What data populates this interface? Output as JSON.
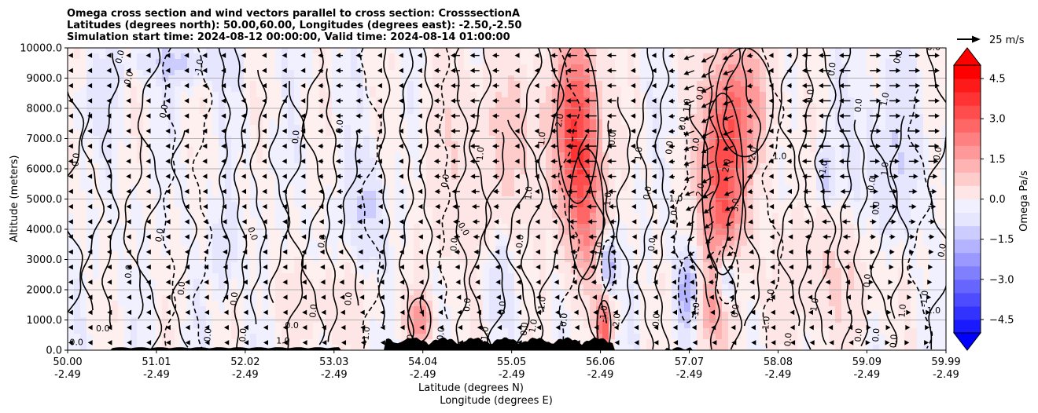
{
  "chart_data": {
    "type": "heatmap",
    "title_lines": [
      "Omega cross section and wind vectors parallel to cross section: CrosssectionA",
      "Latitudes (degrees north): 50.00,60.00, Longitudes (degrees east): -2.50,-2.50",
      "Simulation start time: 2024-08-12 00:00:00, Valid time: 2024-08-14 01:00:00"
    ],
    "ylabel": "Altitude (meters)",
    "xlabel": "Latitude (degrees N)",
    "xlabel2": "Longitude (degrees E)",
    "ylim": [
      0,
      10000
    ],
    "xlim": [
      50.0,
      59.99
    ],
    "y_ticks": [
      {
        "value": 0,
        "label": "0.0"
      },
      {
        "value": 1000,
        "label": "1000.0"
      },
      {
        "value": 2000,
        "label": "2000.0"
      },
      {
        "value": 3000,
        "label": "3000.0"
      },
      {
        "value": 4000,
        "label": "4000.0"
      },
      {
        "value": 5000,
        "label": "5000.0"
      },
      {
        "value": 6000,
        "label": "6000.0"
      },
      {
        "value": 7000,
        "label": "7000.0"
      },
      {
        "value": 8000,
        "label": "8000.0"
      },
      {
        "value": 9000,
        "label": "9000.0"
      },
      {
        "value": 10000,
        "label": "10000.0"
      }
    ],
    "x_ticks": [
      {
        "value": 50.0,
        "lat": "50.00",
        "lon": "-2.49"
      },
      {
        "value": 51.01,
        "lat": "51.01",
        "lon": "-2.49"
      },
      {
        "value": 52.02,
        "lat": "52.02",
        "lon": "-2.49"
      },
      {
        "value": 53.03,
        "lat": "53.03",
        "lon": "-2.49"
      },
      {
        "value": 54.04,
        "lat": "54.04",
        "lon": "-2.49"
      },
      {
        "value": 55.05,
        "lat": "55.05",
        "lon": "-2.49"
      },
      {
        "value": 56.06,
        "lat": "56.06",
        "lon": "-2.49"
      },
      {
        "value": 57.07,
        "lat": "57.07",
        "lon": "-2.49"
      },
      {
        "value": 58.08,
        "lat": "58.08",
        "lon": "-2.49"
      },
      {
        "value": 59.09,
        "lat": "59.09",
        "lon": "-2.49"
      },
      {
        "value": 59.99,
        "lat": "59.99",
        "lon": "-2.49"
      }
    ],
    "colorbar": {
      "label": "Omega Pa/s",
      "range": [
        -5.0,
        5.0
      ],
      "ticks": [
        {
          "value": 4.5,
          "label": "4.5"
        },
        {
          "value": 3.0,
          "label": "3.0"
        },
        {
          "value": 1.5,
          "label": "1.5"
        },
        {
          "value": 0.0,
          "label": "0.0"
        },
        {
          "value": -1.5,
          "label": "−1.5"
        },
        {
          "value": -3.0,
          "label": "−3.0"
        },
        {
          "value": -4.5,
          "label": "−4.5"
        }
      ],
      "extend": "both"
    },
    "quiver_key": {
      "label": "25 m/s",
      "speed": 25
    },
    "omega_features": [
      {
        "lat": 55.8,
        "alt": 7500,
        "omega": 3.2,
        "w_lat": 0.18,
        "w_alt": 2200
      },
      {
        "lat": 55.9,
        "alt": 4500,
        "omega": 1.8,
        "w_lat": 0.15,
        "w_alt": 1800
      },
      {
        "lat": 57.45,
        "alt": 5500,
        "omega": 3.5,
        "w_lat": 0.18,
        "w_alt": 2500
      },
      {
        "lat": 57.7,
        "alt": 8200,
        "omega": 1.6,
        "w_lat": 0.25,
        "w_alt": 1500
      },
      {
        "lat": 57.5,
        "alt": 2500,
        "omega": -2.2,
        "w_lat": 0.1,
        "w_alt": 800
      },
      {
        "lat": 57.05,
        "alt": 2000,
        "omega": -1.8,
        "w_lat": 0.08,
        "w_alt": 900
      },
      {
        "lat": 56.1,
        "alt": 800,
        "omega": 3.0,
        "w_lat": 0.06,
        "w_alt": 700
      },
      {
        "lat": 56.15,
        "alt": 2800,
        "omega": -2.0,
        "w_lat": 0.06,
        "w_alt": 700
      },
      {
        "lat": 54.0,
        "alt": 1000,
        "omega": 2.2,
        "w_lat": 0.1,
        "w_alt": 600
      },
      {
        "lat": 53.4,
        "alt": 4700,
        "omega": -0.9,
        "w_lat": 0.15,
        "w_alt": 1200
      },
      {
        "lat": 51.3,
        "alt": 9500,
        "omega": -0.8,
        "w_lat": 0.4,
        "w_alt": 500
      },
      {
        "lat": 51.8,
        "alt": 3300,
        "omega": -0.9,
        "w_lat": 0.08,
        "w_alt": 900
      },
      {
        "lat": 55.2,
        "alt": 7000,
        "omega": 0.8,
        "w_lat": 0.3,
        "w_alt": 2000
      },
      {
        "lat": 54.5,
        "alt": 6000,
        "omega": 0.6,
        "w_lat": 0.35,
        "w_alt": 2500
      },
      {
        "lat": 58.7,
        "alt": 2500,
        "omega": 0.8,
        "w_lat": 0.5,
        "w_alt": 1500
      },
      {
        "lat": 59.3,
        "alt": 6000,
        "omega": -0.6,
        "w_lat": 0.3,
        "w_alt": 2500
      },
      {
        "lat": 58.6,
        "alt": 5800,
        "omega": -1.2,
        "w_lat": 0.06,
        "w_alt": 600
      },
      {
        "lat": 54.9,
        "alt": 2500,
        "omega": -0.7,
        "w_lat": 0.1,
        "w_alt": 1000
      },
      {
        "lat": 57.3,
        "alt": 1200,
        "omega": 1.2,
        "w_lat": 0.12,
        "w_alt": 800
      },
      {
        "lat": 50.3,
        "alt": 8200,
        "omega": -0.5,
        "w_lat": 0.15,
        "w_alt": 800
      },
      {
        "lat": 52.9,
        "alt": 1500,
        "omega": 0.6,
        "w_lat": 0.4,
        "w_alt": 900
      }
    ],
    "contour_labels": [
      {
        "lat": 50.6,
        "alt": 9700,
        "text": "0.0",
        "rot": -75
      },
      {
        "lat": 51.5,
        "alt": 9350,
        "text": "-1.0",
        "rot": -80
      },
      {
        "lat": 50.7,
        "alt": 9000,
        "text": "0.0",
        "rot": -75
      },
      {
        "lat": 51.1,
        "alt": 7900,
        "text": "0.0",
        "rot": -80
      },
      {
        "lat": 50.1,
        "alt": 6300,
        "text": "0.0",
        "rot": -85
      },
      {
        "lat": 52.6,
        "alt": 7050,
        "text": "0.0",
        "rot": -85
      },
      {
        "lat": 53.1,
        "alt": 7400,
        "text": "0.0",
        "rot": -85
      },
      {
        "lat": 51.05,
        "alt": 3800,
        "text": "0.0",
        "rot": -80
      },
      {
        "lat": 52.1,
        "alt": 3850,
        "text": "0.0",
        "rot": 70
      },
      {
        "lat": 52.9,
        "alt": 3600,
        "text": "0.0",
        "rot": -80
      },
      {
        "lat": 50.7,
        "alt": 2600,
        "text": "0.0",
        "rot": -85
      },
      {
        "lat": 51.3,
        "alt": 2050,
        "text": "0.0",
        "rot": -85
      },
      {
        "lat": 51.9,
        "alt": 1700,
        "text": "0.0",
        "rot": -85
      },
      {
        "lat": 52.8,
        "alt": 1300,
        "text": "0.0",
        "rot": -85
      },
      {
        "lat": 50.4,
        "alt": 700,
        "text": "0.0",
        "rot": 0
      },
      {
        "lat": 50.1,
        "alt": 250,
        "text": "0.0",
        "rot": 0
      },
      {
        "lat": 51.6,
        "alt": 500,
        "text": "0.0",
        "rot": -85
      },
      {
        "lat": 52.0,
        "alt": 500,
        "text": "0.0",
        "rot": -85
      },
      {
        "lat": 52.55,
        "alt": 800,
        "text": "0.0",
        "rot": 0
      },
      {
        "lat": 52.45,
        "alt": 300,
        "text": "1.0",
        "rot": 0
      },
      {
        "lat": 53.4,
        "alt": 500,
        "text": "-1.0",
        "rot": -85
      },
      {
        "lat": 53.9,
        "alt": 300,
        "text": "0.0",
        "rot": -85
      },
      {
        "lat": 54.25,
        "alt": 550,
        "text": "0.0",
        "rot": -85
      },
      {
        "lat": 54.75,
        "alt": 500,
        "text": "-1.0",
        "rot": -85
      },
      {
        "lat": 55.2,
        "alt": 700,
        "text": "0.0",
        "rot": -85
      },
      {
        "lat": 54.55,
        "alt": 1500,
        "text": "0.0",
        "rot": -85
      },
      {
        "lat": 54.95,
        "alt": 1400,
        "text": "0.0",
        "rot": -85
      },
      {
        "lat": 55.4,
        "alt": 1500,
        "text": "-1.0",
        "rot": -85
      },
      {
        "lat": 55.65,
        "alt": 1000,
        "text": "0.0",
        "rot": -85
      },
      {
        "lat": 56.1,
        "alt": 1200,
        "text": "-1.0",
        "rot": -85
      },
      {
        "lat": 56.7,
        "alt": 1000,
        "text": "0.0",
        "rot": -85
      },
      {
        "lat": 57.15,
        "alt": 1300,
        "text": "-1.0",
        "rot": -85
      },
      {
        "lat": 57.6,
        "alt": 1300,
        "text": "0.0",
        "rot": -85
      },
      {
        "lat": 58.0,
        "alt": 1800,
        "text": "1.0",
        "rot": -85
      },
      {
        "lat": 58.5,
        "alt": 1500,
        "text": "1.0",
        "rot": -80
      },
      {
        "lat": 59.1,
        "alt": 2300,
        "text": "0.0",
        "rot": -85
      },
      {
        "lat": 59.5,
        "alt": 1300,
        "text": "1.0",
        "rot": -85
      },
      {
        "lat": 59.75,
        "alt": 1700,
        "text": "-1.0",
        "rot": -85
      },
      {
        "lat": 59.85,
        "alt": 1300,
        "text": "1.0",
        "rot": 0
      },
      {
        "lat": 55.15,
        "alt": 3600,
        "text": "0.0",
        "rot": -85
      },
      {
        "lat": 54.4,
        "alt": 3500,
        "text": "0.0",
        "rot": -85
      },
      {
        "lat": 54.5,
        "alt": 4000,
        "text": "0.0",
        "rot": 60
      },
      {
        "lat": 56.65,
        "alt": 3500,
        "text": "0.0",
        "rot": -85
      },
      {
        "lat": 56.05,
        "alt": 3300,
        "text": "-1.0",
        "rot": -85
      },
      {
        "lat": 55.25,
        "alt": 5200,
        "text": "1.0",
        "rot": -85
      },
      {
        "lat": 54.7,
        "alt": 6500,
        "text": "1.0",
        "rot": -85
      },
      {
        "lat": 54.3,
        "alt": 5600,
        "text": "0.0",
        "rot": -80
      },
      {
        "lat": 55.6,
        "alt": 7600,
        "text": "2.0",
        "rot": -80
      },
      {
        "lat": 55.4,
        "alt": 7000,
        "text": "1.0",
        "rot": -85
      },
      {
        "lat": 56.15,
        "alt": 5000,
        "text": "1.0",
        "rot": -85
      },
      {
        "lat": 56.6,
        "alt": 5200,
        "text": "0.0",
        "rot": -80
      },
      {
        "lat": 56.5,
        "alt": 6500,
        "text": "1.0",
        "rot": -85
      },
      {
        "lat": 56.2,
        "alt": 7000,
        "text": "0.0",
        "rot": -85
      },
      {
        "lat": 56.85,
        "alt": 6700,
        "text": "0.0",
        "rot": -85
      },
      {
        "lat": 57.0,
        "alt": 7500,
        "text": "0.0",
        "rot": -85
      },
      {
        "lat": 57.05,
        "alt": 8100,
        "text": "1.0",
        "rot": -85
      },
      {
        "lat": 56.9,
        "alt": 5000,
        "text": "-1.0",
        "rot": 0
      },
      {
        "lat": 56.9,
        "alt": 4400,
        "text": "1.0",
        "rot": -85
      },
      {
        "lat": 57.2,
        "alt": 8500,
        "text": "0.0",
        "rot": -85
      },
      {
        "lat": 57.15,
        "alt": 6800,
        "text": "0.0",
        "rot": -85
      },
      {
        "lat": 57.2,
        "alt": 5300,
        "text": "2.0",
        "rot": -80
      },
      {
        "lat": 57.5,
        "alt": 6100,
        "text": "2.0",
        "rot": -80
      },
      {
        "lat": 57.6,
        "alt": 4800,
        "text": "3.0",
        "rot": -85
      },
      {
        "lat": 57.8,
        "alt": 6500,
        "text": "2.0",
        "rot": -80
      },
      {
        "lat": 58.1,
        "alt": 6400,
        "text": "1.0",
        "rot": 0
      },
      {
        "lat": 58.6,
        "alt": 6000,
        "text": "-1.0",
        "rot": -80
      },
      {
        "lat": 58.45,
        "alt": 8400,
        "text": "0.0",
        "rot": -85
      },
      {
        "lat": 59.0,
        "alt": 8100,
        "text": "0.0",
        "rot": -85
      },
      {
        "lat": 58.7,
        "alt": 9300,
        "text": "0.0",
        "rot": -85
      },
      {
        "lat": 59.3,
        "alt": 6000,
        "text": "1.0",
        "rot": -85
      },
      {
        "lat": 59.15,
        "alt": 5500,
        "text": "0.0",
        "rot": -80
      },
      {
        "lat": 59.45,
        "alt": 9700,
        "text": "0.0",
        "rot": -75
      },
      {
        "lat": 59.3,
        "alt": 8300,
        "text": "1.0",
        "rot": -80
      },
      {
        "lat": 59.9,
        "alt": 6500,
        "text": "0.0",
        "rot": -80
      },
      {
        "lat": 59.85,
        "alt": 10000,
        "text": "0.0",
        "rot": 0
      },
      {
        "lat": 59.2,
        "alt": 4700,
        "text": "0.0",
        "rot": -85
      },
      {
        "lat": 59.95,
        "alt": 3300,
        "text": "0.0",
        "rot": -80
      },
      {
        "lat": 59.0,
        "alt": 500,
        "text": "0.0",
        "rot": -85
      },
      {
        "lat": 59.2,
        "alt": 500,
        "text": "0.0",
        "rot": -85
      },
      {
        "lat": 59.4,
        "alt": 300,
        "text": "0.0",
        "rot": -85
      },
      {
        "lat": 58.2,
        "alt": 350,
        "text": "0.0",
        "rot": -85
      },
      {
        "lat": 57.95,
        "alt": 900,
        "text": "1.0",
        "rot": -85
      },
      {
        "lat": 55.3,
        "alt": 800,
        "text": "1.0",
        "rot": -80
      },
      {
        "lat": 56.25,
        "alt": 1000,
        "text": "2.0",
        "rot": -85
      },
      {
        "lat": 53.2,
        "alt": 1700,
        "text": "0.0",
        "rot": -85
      }
    ]
  }
}
